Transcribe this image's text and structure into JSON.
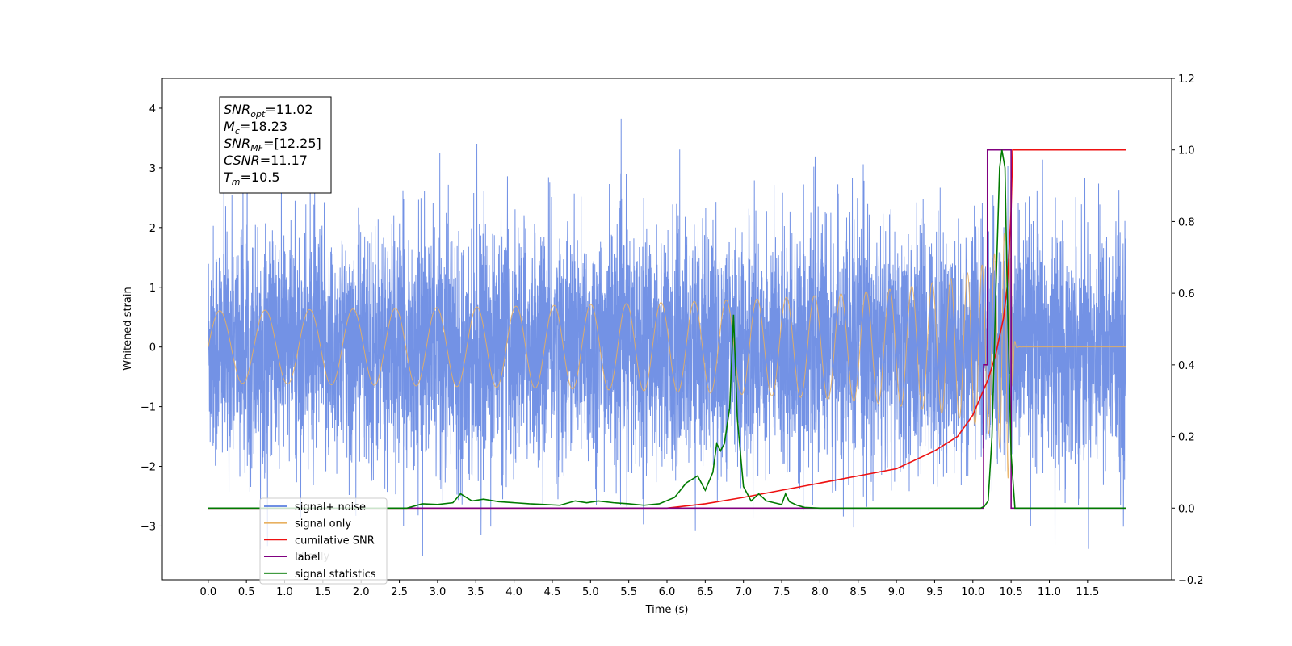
{
  "chart_data": {
    "type": "line",
    "xlabel": "Time (s)",
    "ylabel": "Whitened strain",
    "xlim": [
      -0.6,
      12.6
    ],
    "ylim": [
      -3.9,
      4.5
    ],
    "y2lim": [
      -0.2,
      1.2
    ],
    "x_ticks": [
      "0.0",
      "0.5",
      "1.0",
      "1.5",
      "2.0",
      "2.5",
      "3.0",
      "3.5",
      "4.0",
      "4.5",
      "5.0",
      "5.5",
      "6.0",
      "6.5",
      "7.0",
      "7.5",
      "8.0",
      "8.5",
      "9.0",
      "9.5",
      "10.0",
      "10.5",
      "11.0",
      "11.5"
    ],
    "y_ticks": [
      "4",
      "3",
      "2",
      "1",
      "0",
      "−1",
      "−2",
      "−3"
    ],
    "y2_ticks": [
      "1.2",
      "1.0",
      "0.8",
      "0.6",
      "0.4",
      "0.2",
      "0.0",
      "−0.2"
    ],
    "annotation": {
      "lines": [
        {
          "sym": "SNR",
          "sub": "opt",
          "val": "=11.02"
        },
        {
          "sym": "M",
          "sub": "c",
          "val": "=18.23"
        },
        {
          "sym": "SNR",
          "sub": "MF",
          "val": "=[12.25]"
        },
        {
          "sym": "CSNR",
          "sub": "",
          "val": "=11.17"
        },
        {
          "sym": "T",
          "sub": "m",
          "val": "=10.5"
        }
      ]
    },
    "legend": {
      "location": "lower left",
      "entries": [
        "signal+ noise",
        "signal only",
        "cumilative SNR",
        "label",
        "signal statistics"
      ],
      "hidden_text": [
        "al only"
      ]
    },
    "series": [
      {
        "name": "signal+ noise",
        "axis": "left",
        "color": "#5b7fe0",
        "x_range": [
          0,
          12
        ],
        "std": 1.0,
        "sample_rate": 512
      },
      {
        "name": "signal only",
        "axis": "left",
        "color": "#e8b060",
        "merger_time": 10.5,
        "peak_amplitude": 2.9
      },
      {
        "name": "cumilative SNR",
        "axis": "right",
        "color": "#ee1111",
        "x": [
          0,
          6.0,
          6.5,
          7.0,
          7.5,
          8.0,
          8.5,
          9.0,
          9.5,
          9.8,
          10.0,
          10.1,
          10.2,
          10.3,
          10.4,
          10.45,
          10.5,
          10.52,
          12.0
        ],
        "y": [
          0,
          0,
          0.012,
          0.03,
          0.05,
          0.07,
          0.09,
          0.11,
          0.16,
          0.2,
          0.26,
          0.31,
          0.36,
          0.43,
          0.53,
          0.62,
          0.83,
          1.0,
          1.0
        ]
      },
      {
        "name": "label",
        "axis": "right",
        "color": "#800080",
        "x": [
          0,
          10.14,
          10.14,
          10.19,
          10.19,
          10.5,
          10.5,
          12.0
        ],
        "y": [
          0,
          0,
          0.4,
          0.4,
          1.0,
          1.0,
          0,
          0
        ]
      },
      {
        "name": "signal statistics",
        "axis": "right",
        "color": "#007a00",
        "x": [
          0,
          2.5,
          2.6,
          2.8,
          3.0,
          3.2,
          3.3,
          3.45,
          3.6,
          3.8,
          4.0,
          4.2,
          4.4,
          4.6,
          4.8,
          4.95,
          5.1,
          5.3,
          5.5,
          5.7,
          5.9,
          6.1,
          6.25,
          6.4,
          6.5,
          6.6,
          6.65,
          6.7,
          6.75,
          6.82,
          6.87,
          6.92,
          7.0,
          7.1,
          7.2,
          7.3,
          7.4,
          7.5,
          7.55,
          7.6,
          7.7,
          7.8,
          8.0,
          9.0,
          10.0,
          10.1,
          10.15,
          10.2,
          10.25,
          10.3,
          10.35,
          10.38,
          10.42,
          10.45,
          10.5,
          10.55,
          12.0
        ],
        "y": [
          0,
          0,
          0,
          0.012,
          0.01,
          0.015,
          0.04,
          0.02,
          0.025,
          0.018,
          0.015,
          0.012,
          0.01,
          0.008,
          0.02,
          0.015,
          0.02,
          0.015,
          0.012,
          0.008,
          0.012,
          0.03,
          0.07,
          0.09,
          0.05,
          0.1,
          0.18,
          0.16,
          0.18,
          0.28,
          0.54,
          0.25,
          0.06,
          0.02,
          0.04,
          0.02,
          0.015,
          0.01,
          0.04,
          0.018,
          0.008,
          0.002,
          0,
          0,
          0,
          0,
          0.005,
          0.02,
          0.2,
          0.6,
          0.95,
          1.0,
          0.95,
          0.6,
          0.15,
          0,
          0
        ]
      }
    ]
  }
}
